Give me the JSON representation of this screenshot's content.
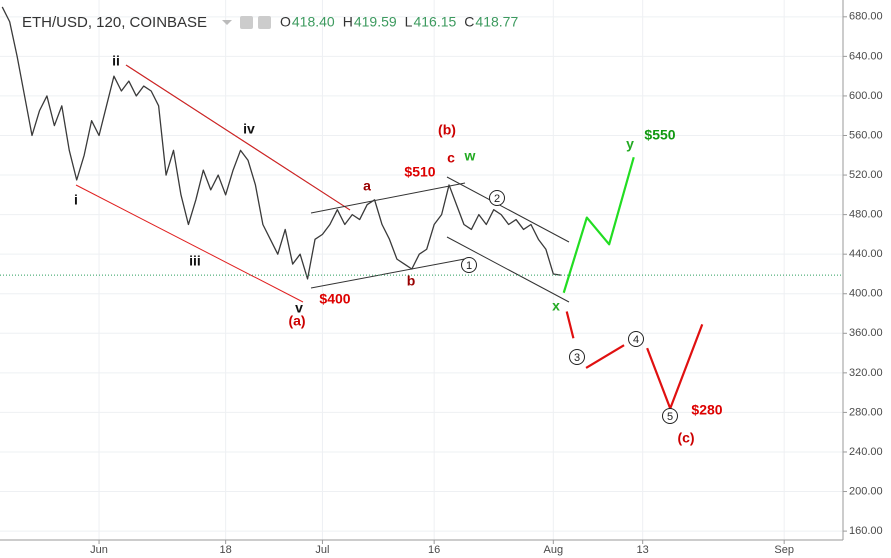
{
  "chart_data": {
    "type": "line",
    "title": "ETH/USD, 120, COINBASE",
    "ohlc": [
      {
        "key": "O",
        "value": "418.40"
      },
      {
        "key": "H",
        "value": "419.59"
      },
      {
        "key": "L",
        "value": "416.15"
      },
      {
        "key": "C",
        "value": "418.77"
      }
    ],
    "xlim": [
      -13.3,
      99.9
    ],
    "ylim": [
      151,
      697
    ],
    "xticks": [
      {
        "value": 0,
        "label": "Jun"
      },
      {
        "value": 17,
        "label": "18"
      },
      {
        "value": 30,
        "label": "Jul"
      },
      {
        "value": 45,
        "label": "16"
      },
      {
        "value": 61,
        "label": "Aug"
      },
      {
        "value": 73,
        "label": "13"
      },
      {
        "value": 92,
        "label": "Sep"
      }
    ],
    "yticks": [
      {
        "value": 160,
        "label": "160.00"
      },
      {
        "value": 200,
        "label": "200.00"
      },
      {
        "value": 240,
        "label": "240.00"
      },
      {
        "value": 280,
        "label": "280.00"
      },
      {
        "value": 320,
        "label": "320.00"
      },
      {
        "value": 360,
        "label": "360.00"
      },
      {
        "value": 400,
        "label": "400.00"
      },
      {
        "value": 440,
        "label": "440.00"
      },
      {
        "value": 480,
        "label": "480.00"
      },
      {
        "value": 520,
        "label": "520.00"
      },
      {
        "value": 560,
        "label": "560.00"
      },
      {
        "value": 600,
        "label": "600.00"
      },
      {
        "value": 640,
        "label": "640.00"
      },
      {
        "value": 680,
        "label": "680.00"
      }
    ],
    "grid": true,
    "series": [
      {
        "color": "#3a3a3a",
        "x": [
          -13,
          -12,
          -11,
          -10,
          -9,
          -8,
          -7,
          -6,
          -5,
          -4,
          -3,
          -2,
          -1,
          0,
          1,
          2,
          3,
          4,
          5,
          6,
          7,
          8,
          9,
          10,
          11,
          12,
          13,
          14,
          15,
          16,
          17,
          18,
          19,
          20,
          21,
          22,
          23,
          24,
          25,
          26,
          27,
          28,
          29,
          30,
          31,
          32,
          33,
          34,
          35,
          36,
          37,
          38,
          39,
          40,
          41,
          42,
          43,
          44,
          45,
          46,
          47,
          48,
          49,
          50,
          51,
          52,
          53,
          54,
          55,
          56,
          57,
          58,
          59,
          60,
          61,
          62
        ],
        "values": [
          690,
          675,
          640,
          600,
          560,
          585,
          600,
          570,
          590,
          545,
          515,
          540,
          575,
          560,
          590,
          620,
          605,
          615,
          600,
          610,
          605,
          590,
          520,
          545,
          500,
          470,
          495,
          525,
          505,
          520,
          500,
          525,
          545,
          535,
          510,
          470,
          455,
          440,
          465,
          430,
          440,
          415,
          455,
          460,
          470,
          485,
          470,
          480,
          475,
          490,
          495,
          470,
          455,
          435,
          430,
          425,
          440,
          445,
          470,
          480,
          510,
          490,
          470,
          465,
          480,
          470,
          485,
          480,
          470,
          475,
          465,
          470,
          455,
          445,
          420,
          418.77
        ]
      },
      {
        "color": "#22dd22",
        "x": [
          62.4,
          65.5,
          68.5,
          71.8
        ],
        "values": [
          401,
          477,
          450,
          538
        ]
      },
      {
        "color": "#e01010",
        "x": [
          62.8,
          63.7,
          64.5,
          65.4,
          70.5,
          71.5,
          73.6,
          76.7,
          81.0
        ],
        "values": [
          382,
          355,
          null,
          325,
          348,
          null,
          345,
          284,
          369
        ]
      }
    ],
    "annotations": [
      {
        "text": "ii",
        "color": "#111111"
      },
      {
        "text": "iv",
        "color": "#111111"
      },
      {
        "text": "i",
        "color": "#111111"
      },
      {
        "text": "iii",
        "color": "#111111"
      },
      {
        "text": "v",
        "color": "#111111"
      },
      {
        "text": "(a)",
        "color": "#cc0000"
      },
      {
        "text": "$400",
        "color": "#dd0000"
      },
      {
        "text": "a",
        "color": "#990000"
      },
      {
        "text": "b",
        "color": "#990000"
      },
      {
        "text": "$510",
        "color": "#dd0000"
      },
      {
        "text": "(b)",
        "color": "#cc0000"
      },
      {
        "text": "c",
        "color": "#cc0000"
      },
      {
        "text": "w",
        "color": "#22aa22"
      },
      {
        "text": "$550",
        "color": "#119911"
      },
      {
        "text": "y",
        "color": "#22aa22"
      },
      {
        "text": "x",
        "color": "#22aa22"
      },
      {
        "text": "$280",
        "color": "#dd0000"
      },
      {
        "text": "(c)",
        "color": "#cc0000"
      }
    ],
    "wave_marks": [
      "1",
      "2",
      "3",
      "4",
      "5"
    ]
  }
}
